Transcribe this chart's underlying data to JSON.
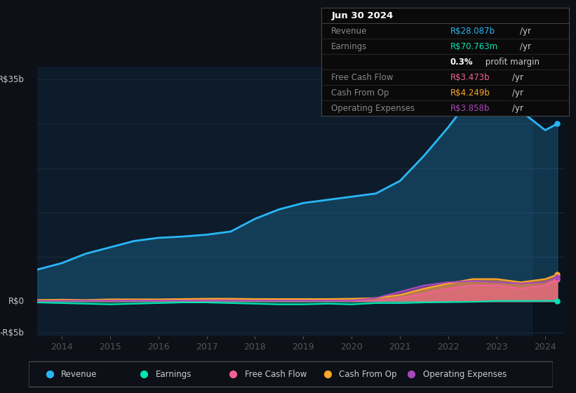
{
  "bg_color": "#0d1117",
  "plot_bg_color": "#0d1b2a",
  "grid_color": "#1e2d3d",
  "years": [
    2013.5,
    2014.0,
    2014.5,
    2015.0,
    2015.5,
    2016.0,
    2016.5,
    2017.0,
    2017.5,
    2018.0,
    2018.5,
    2019.0,
    2019.5,
    2020.0,
    2020.5,
    2021.0,
    2021.5,
    2022.0,
    2022.5,
    2023.0,
    2023.5,
    2024.0,
    2024.25
  ],
  "revenue": [
    5.0,
    6.0,
    7.5,
    8.5,
    9.5,
    10.0,
    10.2,
    10.5,
    11.0,
    13.0,
    14.5,
    15.5,
    16.0,
    16.5,
    17.0,
    19.0,
    23.0,
    27.5,
    32.5,
    34.5,
    30.0,
    27.0,
    28.0
  ],
  "earnings": [
    -0.2,
    -0.3,
    -0.4,
    -0.5,
    -0.4,
    -0.3,
    -0.2,
    -0.2,
    -0.3,
    -0.4,
    -0.5,
    -0.5,
    -0.4,
    -0.5,
    -0.3,
    -0.3,
    -0.2,
    -0.15,
    -0.1,
    0.05,
    0.05,
    0.05,
    0.07
  ],
  "free_cash_flow": [
    0.1,
    0.15,
    0.1,
    0.05,
    0.1,
    0.1,
    0.15,
    0.2,
    0.2,
    0.1,
    0.1,
    0.1,
    0.1,
    0.05,
    0.05,
    0.5,
    1.2,
    2.0,
    2.5,
    2.5,
    2.0,
    2.5,
    3.4
  ],
  "cash_from_op": [
    0.2,
    0.25,
    0.2,
    0.3,
    0.3,
    0.3,
    0.35,
    0.4,
    0.4,
    0.35,
    0.35,
    0.35,
    0.35,
    0.4,
    0.5,
    1.0,
    2.0,
    2.8,
    3.5,
    3.5,
    3.0,
    3.5,
    4.2
  ],
  "op_expenses": [
    0.05,
    0.08,
    0.1,
    0.1,
    0.1,
    0.1,
    0.1,
    0.1,
    0.1,
    0.1,
    0.1,
    0.1,
    0.1,
    0.1,
    0.5,
    1.5,
    2.5,
    3.0,
    3.2,
    3.0,
    2.8,
    3.0,
    3.8
  ],
  "revenue_color": "#29b6f6",
  "earnings_color": "#00e5b3",
  "free_cash_flow_color": "#f06292",
  "cash_from_op_color": "#ffa726",
  "op_expenses_color": "#ab47bc",
  "xlim": [
    2013.5,
    2024.4
  ],
  "ylim": [
    -5.5,
    37
  ],
  "xticks": [
    2014,
    2015,
    2016,
    2017,
    2018,
    2019,
    2020,
    2021,
    2022,
    2023,
    2024
  ],
  "info_box_title": "Jun 30 2024",
  "info_box_rows": [
    {
      "label": "Revenue",
      "value": "R$28.087b",
      "unit": "/yr",
      "value_color": "#29b6f6"
    },
    {
      "label": "Earnings",
      "value": "R$70.763m",
      "unit": "/yr",
      "value_color": "#00e5b3"
    },
    {
      "label": "",
      "value": "0.3%",
      "unit": " profit margin",
      "value_color": "#ffffff",
      "bold": true
    },
    {
      "label": "Free Cash Flow",
      "value": "R$3.473b",
      "unit": "/yr",
      "value_color": "#f06292"
    },
    {
      "label": "Cash From Op",
      "value": "R$4.249b",
      "unit": "/yr",
      "value_color": "#ffa726"
    },
    {
      "label": "Operating Expenses",
      "value": "R$3.858b",
      "unit": "/yr",
      "value_color": "#ab47bc"
    }
  ],
  "legend": [
    {
      "label": "Revenue",
      "color": "#29b6f6"
    },
    {
      "label": "Earnings",
      "color": "#00e5b3"
    },
    {
      "label": "Free Cash Flow",
      "color": "#f06292"
    },
    {
      "label": "Cash From Op",
      "color": "#ffa726"
    },
    {
      "label": "Operating Expenses",
      "color": "#ab47bc"
    }
  ]
}
